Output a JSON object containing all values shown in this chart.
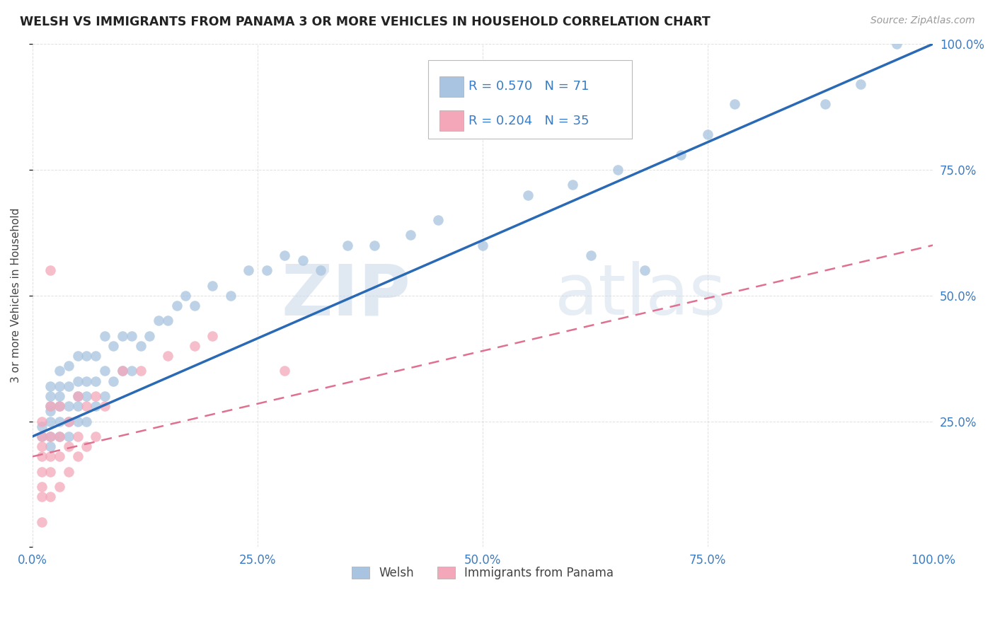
{
  "title": "WELSH VS IMMIGRANTS FROM PANAMA 3 OR MORE VEHICLES IN HOUSEHOLD CORRELATION CHART",
  "source": "Source: ZipAtlas.com",
  "ylabel": "3 or more Vehicles in Household",
  "watermark_zip": "ZIP",
  "watermark_atlas": "atlas",
  "xlim": [
    0.0,
    1.0
  ],
  "ylim": [
    0.0,
    1.0
  ],
  "xticks": [
    0.0,
    0.25,
    0.5,
    0.75,
    1.0
  ],
  "xtick_labels": [
    "0.0%",
    "25.0%",
    "50.0%",
    "75.0%",
    "100.0%"
  ],
  "yticks": [
    0.0,
    0.25,
    0.5,
    0.75,
    1.0
  ],
  "ytick_labels_right": [
    "",
    "25.0%",
    "50.0%",
    "75.0%",
    "100.0%"
  ],
  "welsh_R": 0.57,
  "welsh_N": 71,
  "panama_R": 0.204,
  "panama_N": 35,
  "welsh_color": "#a8c4e0",
  "panama_color": "#f4a7b9",
  "welsh_line_color": "#2a6ab5",
  "panama_line_color": "#e07090",
  "background_color": "#ffffff",
  "grid_color": "#cccccc",
  "title_color": "#222222",
  "axis_label_color": "#444444",
  "tick_color": "#3a7cc5",
  "legend_value_color": "#3a7cc5",
  "welsh_line_x0": 0.0,
  "welsh_line_y0": 0.22,
  "welsh_line_x1": 1.0,
  "welsh_line_y1": 1.0,
  "panama_line_x0": 0.0,
  "panama_line_y0": 0.18,
  "panama_line_x1": 1.0,
  "panama_line_y1": 0.6,
  "welsh_scatter_x": [
    0.01,
    0.01,
    0.02,
    0.02,
    0.02,
    0.02,
    0.02,
    0.02,
    0.02,
    0.03,
    0.03,
    0.03,
    0.03,
    0.03,
    0.03,
    0.04,
    0.04,
    0.04,
    0.04,
    0.04,
    0.05,
    0.05,
    0.05,
    0.05,
    0.05,
    0.06,
    0.06,
    0.06,
    0.06,
    0.07,
    0.07,
    0.07,
    0.08,
    0.08,
    0.08,
    0.09,
    0.09,
    0.1,
    0.1,
    0.11,
    0.11,
    0.12,
    0.13,
    0.14,
    0.15,
    0.16,
    0.17,
    0.18,
    0.2,
    0.22,
    0.24,
    0.26,
    0.28,
    0.3,
    0.32,
    0.35,
    0.38,
    0.42,
    0.45,
    0.5,
    0.55,
    0.6,
    0.62,
    0.65,
    0.68,
    0.72,
    0.75,
    0.78,
    0.88,
    0.92,
    0.96
  ],
  "welsh_scatter_y": [
    0.22,
    0.24,
    0.2,
    0.22,
    0.25,
    0.27,
    0.28,
    0.3,
    0.32,
    0.22,
    0.25,
    0.28,
    0.3,
    0.32,
    0.35,
    0.22,
    0.25,
    0.28,
    0.32,
    0.36,
    0.25,
    0.28,
    0.3,
    0.33,
    0.38,
    0.25,
    0.3,
    0.33,
    0.38,
    0.28,
    0.33,
    0.38,
    0.3,
    0.35,
    0.42,
    0.33,
    0.4,
    0.35,
    0.42,
    0.35,
    0.42,
    0.4,
    0.42,
    0.45,
    0.45,
    0.48,
    0.5,
    0.48,
    0.52,
    0.5,
    0.55,
    0.55,
    0.58,
    0.57,
    0.55,
    0.6,
    0.6,
    0.62,
    0.65,
    0.6,
    0.7,
    0.72,
    0.58,
    0.75,
    0.55,
    0.78,
    0.82,
    0.88,
    0.88,
    0.92,
    1.0
  ],
  "panama_scatter_x": [
    0.01,
    0.01,
    0.01,
    0.01,
    0.01,
    0.01,
    0.01,
    0.01,
    0.02,
    0.02,
    0.02,
    0.02,
    0.02,
    0.03,
    0.03,
    0.03,
    0.03,
    0.04,
    0.04,
    0.04,
    0.05,
    0.05,
    0.05,
    0.06,
    0.06,
    0.07,
    0.07,
    0.08,
    0.1,
    0.12,
    0.15,
    0.18,
    0.2,
    0.28,
    0.02
  ],
  "panama_scatter_y": [
    0.1,
    0.12,
    0.15,
    0.18,
    0.2,
    0.22,
    0.25,
    0.05,
    0.1,
    0.15,
    0.18,
    0.22,
    0.28,
    0.12,
    0.18,
    0.22,
    0.28,
    0.15,
    0.2,
    0.25,
    0.18,
    0.22,
    0.3,
    0.2,
    0.28,
    0.22,
    0.3,
    0.28,
    0.35,
    0.35,
    0.38,
    0.4,
    0.42,
    0.35,
    0.55
  ]
}
